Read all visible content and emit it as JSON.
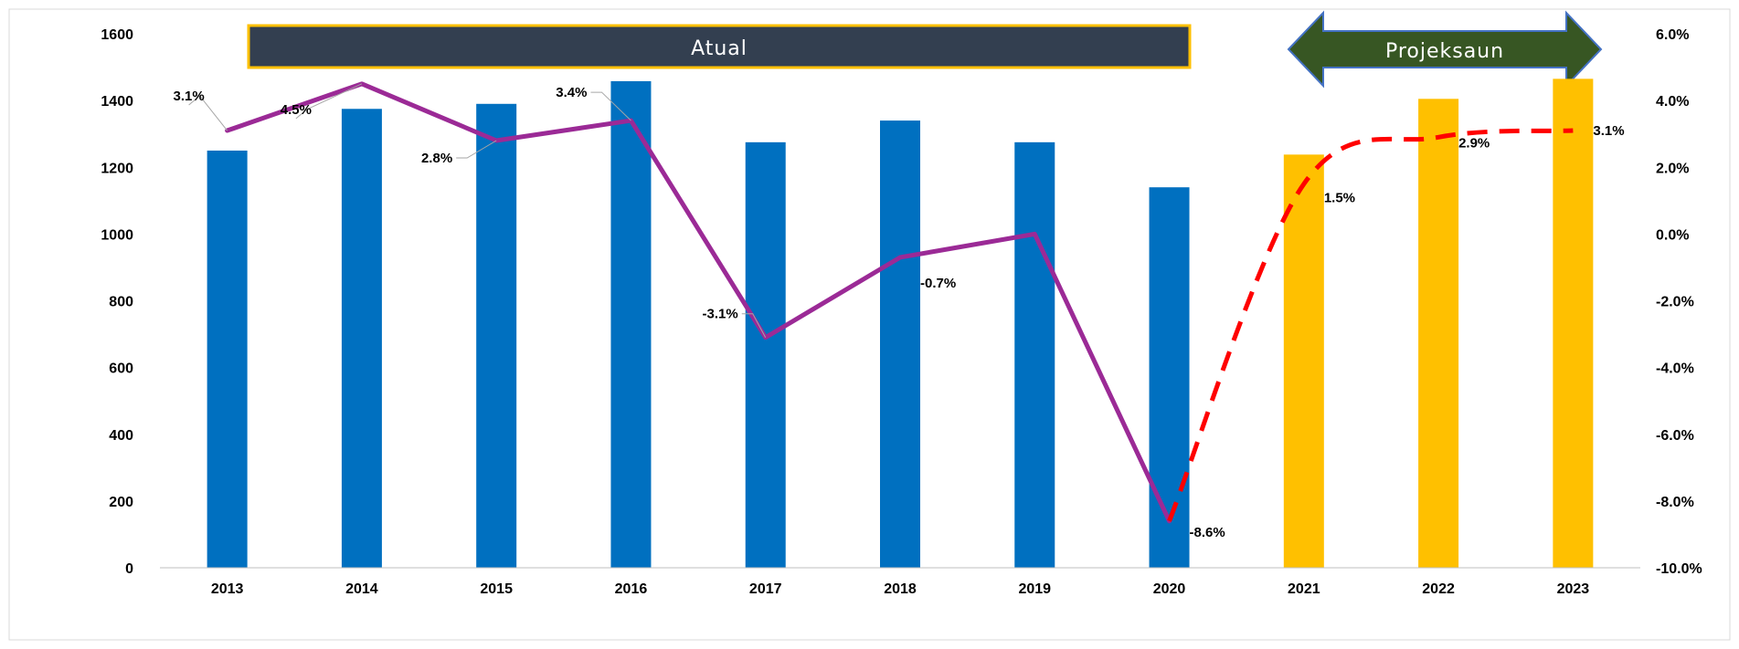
{
  "chart_data": {
    "type": "bar",
    "categories": [
      "2013",
      "2014",
      "2015",
      "2016",
      "2017",
      "2018",
      "2019",
      "2020",
      "2021",
      "2022",
      "2023"
    ],
    "bars": {
      "values": [
        1250,
        1375,
        1390,
        1458,
        1275,
        1340,
        1275,
        1140,
        1238,
        1405,
        1465
      ],
      "actual_color": "#0070C0",
      "projection_color": "#FFC000",
      "projection_start_index": 8
    },
    "growth_line": {
      "values": [
        3.1,
        4.5,
        2.8,
        3.4,
        -3.1,
        -0.7,
        0.0,
        -8.6,
        1.5,
        2.9,
        3.1
      ],
      "labels": [
        "3.1%",
        "4.5%",
        "2.8%",
        "3.4%",
        "-3.1%",
        "-0.7%",
        "",
        "-8.6%",
        "1.5%",
        "2.9%",
        "3.1%"
      ],
      "actual_color": "#9B2A96",
      "projection_color": "#FF0000",
      "actual_end_index": 7
    },
    "y_left": {
      "min": 0,
      "max": 1600,
      "step": 200,
      "ticks": [
        "0",
        "200",
        "400",
        "600",
        "800",
        "1000",
        "1200",
        "1400",
        "1600"
      ]
    },
    "y_right": {
      "min": -10,
      "max": 6,
      "step": 2,
      "ticks": [
        "-10.0%",
        "-8.0%",
        "-6.0%",
        "-4.0%",
        "-2.0%",
        "0.0%",
        "2.0%",
        "4.0%",
        "6.0%"
      ]
    },
    "annotations": {
      "actual_banner": {
        "text": "Atual",
        "fill": "#333F50",
        "border": "#FFC000"
      },
      "projection_banner": {
        "text": "Projeksaun",
        "fill": "#375623",
        "border": "#4472C4"
      }
    }
  }
}
